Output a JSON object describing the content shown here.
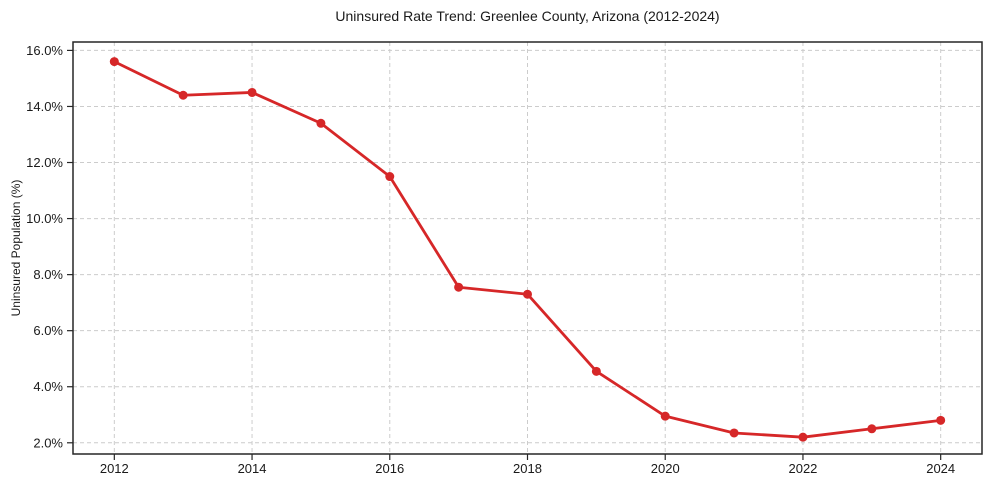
{
  "chart_data": {
    "type": "line",
    "title": "Uninsured Rate Trend: Greenlee County, Arizona (2012-2024)",
    "xlabel": "",
    "ylabel": "Uninsured Population (%)",
    "x": [
      2012,
      2013,
      2014,
      2015,
      2016,
      2017,
      2018,
      2019,
      2020,
      2021,
      2022,
      2023,
      2024
    ],
    "values": [
      15.6,
      14.4,
      14.5,
      13.4,
      11.5,
      7.55,
      7.3,
      4.55,
      2.95,
      2.35,
      2.2,
      2.5,
      2.8
    ],
    "xlim": [
      2011.4,
      2024.6
    ],
    "ylim": [
      1.6,
      16.3
    ],
    "xticks": [
      2012,
      2014,
      2016,
      2018,
      2020,
      2022,
      2024
    ],
    "xtick_labels": [
      "2012",
      "2014",
      "2016",
      "2018",
      "2020",
      "2022",
      "2024"
    ],
    "yticks": [
      2,
      4,
      6,
      8,
      10,
      12,
      14,
      16
    ],
    "ytick_labels": [
      "2.0%",
      "4.0%",
      "6.0%",
      "8.0%",
      "10.0%",
      "12.0%",
      "14.0%",
      "16.0%"
    ],
    "grid": true,
    "grid_style": "dashed",
    "legend": "none",
    "marker": "circle",
    "style": {
      "line_color": "#d62728",
      "grid_color": "#cccccc",
      "axis_color": "#262626",
      "text_color": "#1a1a1a",
      "background": "#ffffff"
    }
  }
}
